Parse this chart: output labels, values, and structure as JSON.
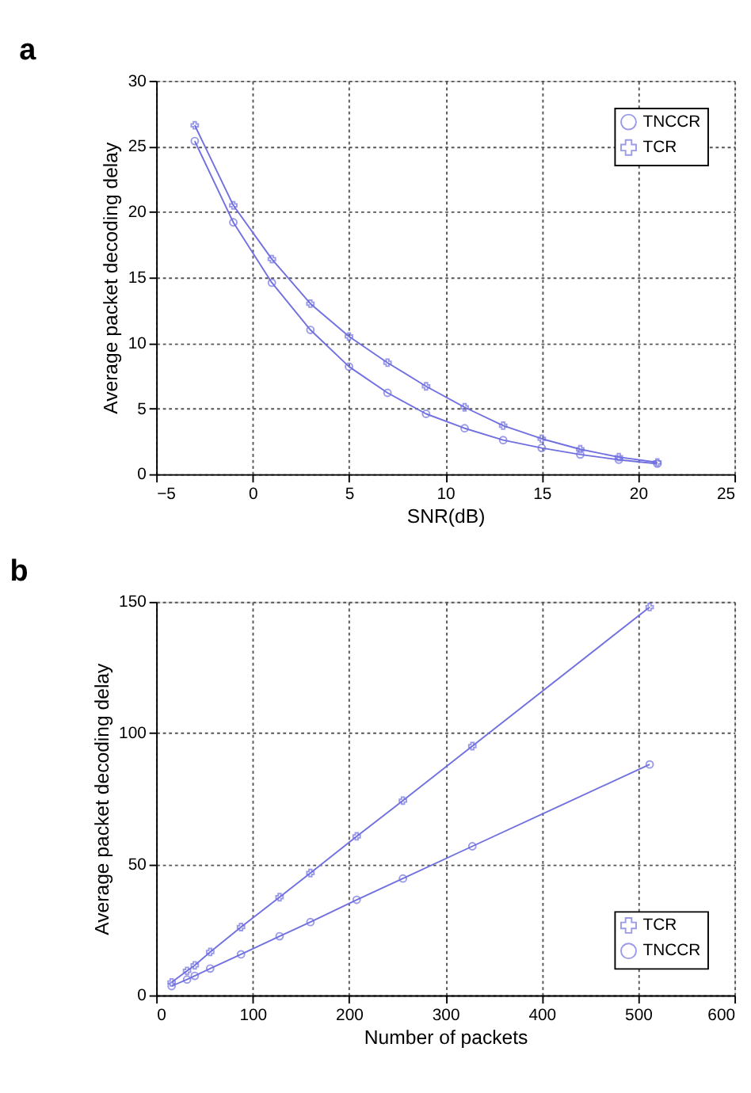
{
  "chart_data": [
    {
      "type": "line",
      "title": "a",
      "xlabel": "SNR(dB)",
      "ylabel": "Average packet decoding delay",
      "x": [
        -3,
        -1,
        1,
        3,
        5,
        7,
        9,
        11,
        13,
        15,
        17,
        19,
        21
      ],
      "series": [
        {
          "name": "TNCCR",
          "color": "#7070e0",
          "marker": "circle",
          "values": [
            25.4,
            19.2,
            14.6,
            11.0,
            8.2,
            6.2,
            4.6,
            3.5,
            2.6,
            2.0,
            1.5,
            1.1,
            0.8
          ]
        },
        {
          "name": "TCR",
          "color": "#7070e0",
          "marker": "cross",
          "values": [
            26.6,
            20.5,
            16.4,
            13.0,
            10.5,
            8.5,
            6.7,
            5.1,
            3.7,
            2.7,
            1.9,
            1.3,
            0.9
          ]
        }
      ],
      "xlim": [
        -5,
        25
      ],
      "xticks": [
        -5,
        0,
        5,
        10,
        15,
        20,
        25
      ],
      "ylim": [
        0,
        30
      ],
      "yticks": [
        0,
        5,
        10,
        15,
        20,
        25,
        30
      ],
      "grid": true,
      "legend": "top right",
      "line_style": "solid"
    },
    {
      "type": "line",
      "title": "b",
      "xlabel": "Number of packets",
      "ylabel": "Average packet decoding delay",
      "x": [
        16,
        32,
        40,
        56,
        88,
        128,
        160,
        208,
        256,
        328,
        512
      ],
      "series": [
        {
          "name": "TCR",
          "color": "#7070e0",
          "marker": "cross",
          "values": [
            4.9,
            9.3,
            11.4,
            16.5,
            26.0,
            37.4,
            46.6,
            60.6,
            74.2,
            95.0,
            148.0
          ]
        },
        {
          "name": "TNCCR",
          "color": "#7070e0",
          "marker": "circle",
          "values": [
            3.5,
            6.0,
            7.4,
            10.2,
            15.6,
            22.5,
            27.9,
            36.4,
            44.5,
            56.8,
            88.0
          ]
        }
      ],
      "xlim": [
        0,
        600
      ],
      "xticks": [
        0,
        100,
        200,
        300,
        400,
        500,
        600
      ],
      "ylim": [
        0,
        150
      ],
      "yticks": [
        0,
        50,
        100,
        150
      ],
      "grid": true,
      "legend": "bottom right",
      "line_style": "solid"
    }
  ]
}
